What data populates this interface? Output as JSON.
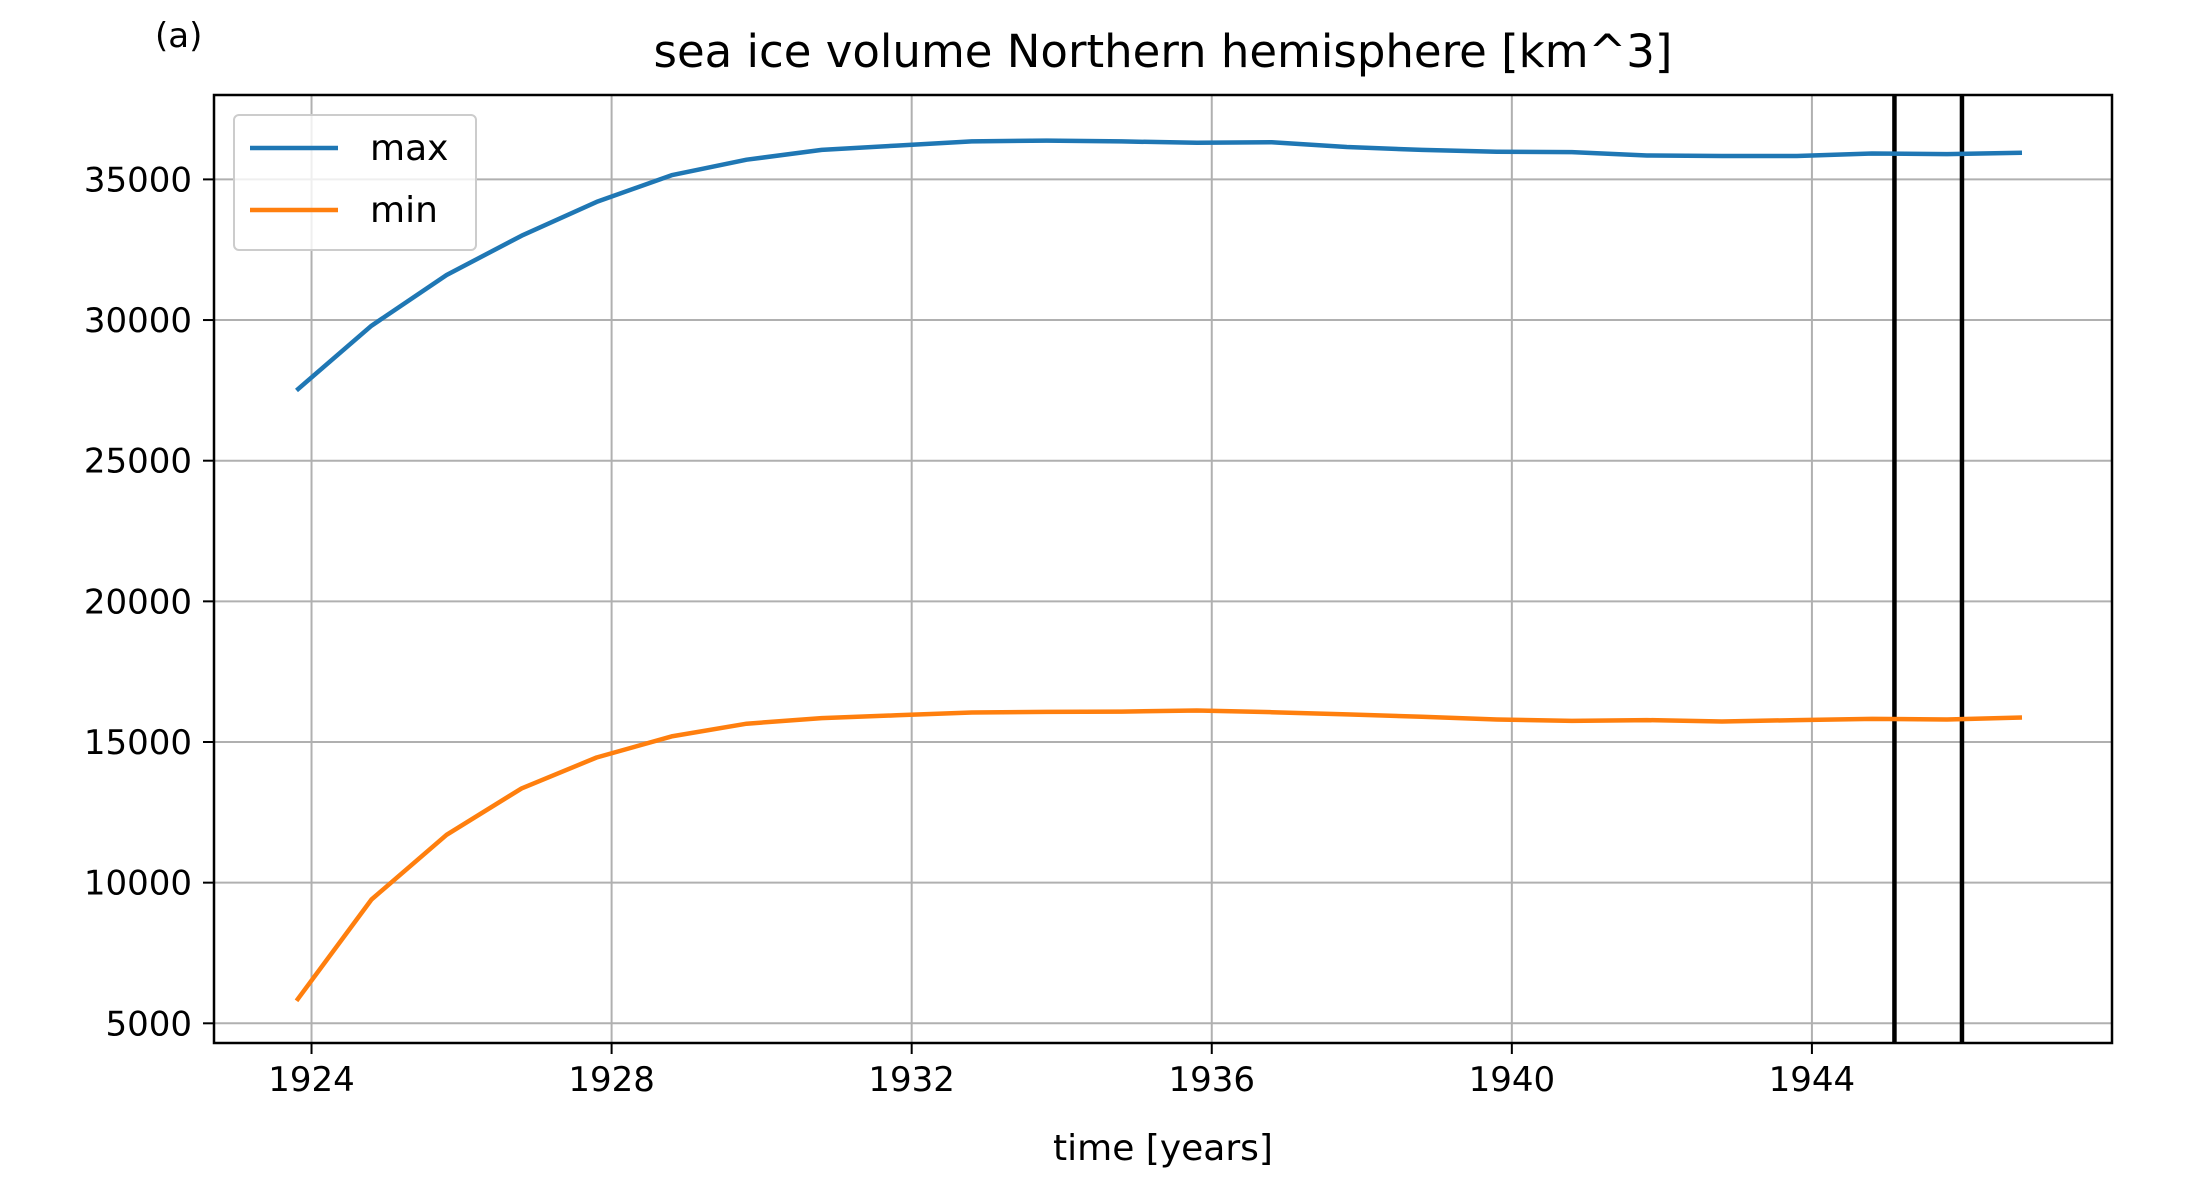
{
  "panel_label": "(a)",
  "colors": {
    "max": "#1f77b4",
    "min": "#ff7f0e",
    "grid": "#b0b0b0",
    "marker": "#000000"
  },
  "chart_data": {
    "type": "line",
    "title": "sea ice volume Northern hemisphere [km^3]",
    "xlabel": "time [years]",
    "ylabel": "",
    "x": [
      1923.8,
      1924.8,
      1925.8,
      1926.8,
      1927.8,
      1928.8,
      1929.8,
      1930.8,
      1931.8,
      1932.8,
      1933.8,
      1934.8,
      1935.8,
      1936.8,
      1937.8,
      1938.8,
      1939.8,
      1940.8,
      1941.8,
      1942.8,
      1943.8,
      1944.8,
      1945.8,
      1946.8
    ],
    "series": [
      {
        "name": "max",
        "color": "#1f77b4",
        "values": [
          27500,
          29800,
          31600,
          33000,
          34200,
          35150,
          35700,
          36050,
          36200,
          36350,
          36380,
          36350,
          36300,
          36320,
          36150,
          36050,
          35980,
          35970,
          35850,
          35830,
          35830,
          35920,
          35900,
          35950
        ]
      },
      {
        "name": "min",
        "color": "#ff7f0e",
        "values": [
          5800,
          9400,
          11700,
          13350,
          14450,
          15200,
          15650,
          15850,
          15950,
          16050,
          16070,
          16080,
          16120,
          16060,
          15980,
          15900,
          15800,
          15750,
          15780,
          15730,
          15780,
          15820,
          15800,
          15870
        ]
      }
    ],
    "vlines": [
      1945.1,
      1946.0
    ],
    "xlim": [
      1922.7,
      1948.0
    ],
    "ylim": [
      4300,
      38000
    ],
    "xticks": [
      1924,
      1928,
      1932,
      1936,
      1940,
      1944
    ],
    "yticks": [
      5000,
      10000,
      15000,
      20000,
      25000,
      30000,
      35000
    ],
    "grid": true,
    "legend_position": "top-left"
  }
}
